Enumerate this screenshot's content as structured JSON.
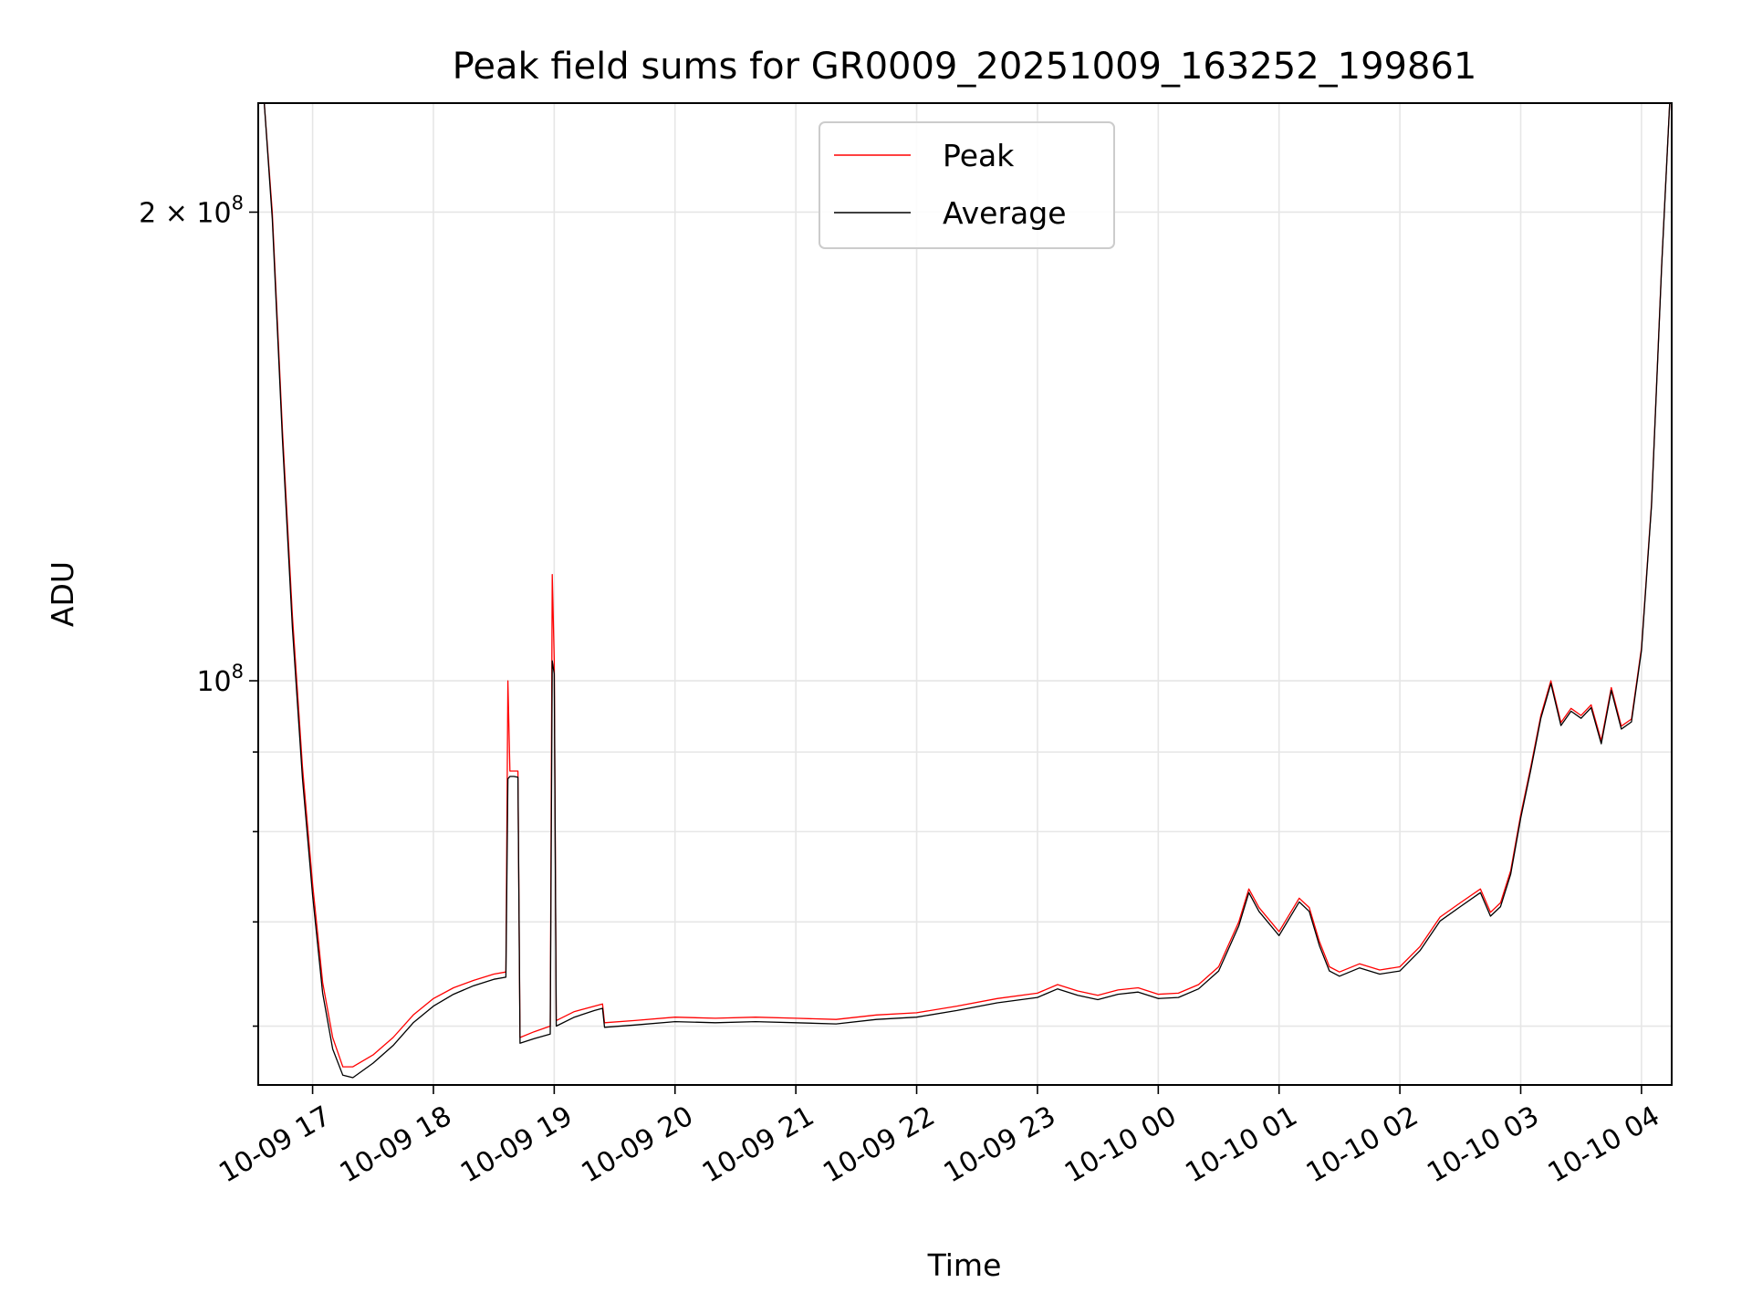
{
  "chart_data": {
    "type": "line",
    "title": "Peak field sums for GR0009_20251009_163252_199861",
    "xlabel": "Time",
    "ylabel": "ADU",
    "yscale": "log",
    "xlim": [
      "2025-10-09 16:33",
      "2025-10-10 04:15"
    ],
    "ylim": [
      55000000,
      235000000
    ],
    "grid": true,
    "legend_position": "top-center",
    "x_ticks": [
      "10-09 17",
      "10-09 18",
      "10-09 19",
      "10-09 20",
      "10-09 21",
      "10-09 22",
      "10-09 23",
      "10-10 00",
      "10-10 01",
      "10-10 02",
      "10-10 03",
      "10-10 04"
    ],
    "y_ticks": [
      {
        "value": 200000000,
        "label_base": "2 × 10",
        "label_exp": "8"
      },
      {
        "value": 100000000,
        "label_base": "10",
        "label_exp": "8"
      }
    ],
    "y_minor_ticks": [
      60000000,
      70000000,
      80000000,
      90000000
    ],
    "series": [
      {
        "name": "Peak",
        "color": "#ff0000",
        "points": [
          [
            "2025-10-09 16:36",
            235000000
          ],
          [
            "2025-10-09 16:40",
            200000000
          ],
          [
            "2025-10-09 16:45",
            145000000
          ],
          [
            "2025-10-09 16:50",
            110000000
          ],
          [
            "2025-10-09 16:55",
            88000000
          ],
          [
            "2025-10-09 17:00",
            74000000
          ],
          [
            "2025-10-09 17:05",
            64000000
          ],
          [
            "2025-10-09 17:10",
            59000000
          ],
          [
            "2025-10-09 17:15",
            56500000
          ],
          [
            "2025-10-09 17:20",
            56500000
          ],
          [
            "2025-10-09 17:30",
            57500000
          ],
          [
            "2025-10-09 17:40",
            59000000
          ],
          [
            "2025-10-09 17:50",
            61000000
          ],
          [
            "2025-10-09 18:00",
            62500000
          ],
          [
            "2025-10-09 18:10",
            63500000
          ],
          [
            "2025-10-09 18:20",
            64200000
          ],
          [
            "2025-10-09 18:30",
            64800000
          ],
          [
            "2025-10-09 18:36",
            65000000
          ],
          [
            "2025-10-09 18:37",
            100000000
          ],
          [
            "2025-10-09 18:38",
            87500000
          ],
          [
            "2025-10-09 18:40",
            87500000
          ],
          [
            "2025-10-09 18:42",
            87500000
          ],
          [
            "2025-10-09 18:43",
            59000000
          ],
          [
            "2025-10-09 18:50",
            59500000
          ],
          [
            "2025-10-09 18:58",
            60000000
          ],
          [
            "2025-10-09 18:59",
            117000000
          ],
          [
            "2025-10-09 19:00",
            103000000
          ],
          [
            "2025-10-09 19:01",
            60500000
          ],
          [
            "2025-10-09 19:10",
            61300000
          ],
          [
            "2025-10-09 19:20",
            61800000
          ],
          [
            "2025-10-09 19:24",
            62000000
          ],
          [
            "2025-10-09 19:25",
            60300000
          ],
          [
            "2025-10-09 19:40",
            60500000
          ],
          [
            "2025-10-09 20:00",
            60800000
          ],
          [
            "2025-10-09 20:20",
            60700000
          ],
          [
            "2025-10-09 20:40",
            60800000
          ],
          [
            "2025-10-09 21:00",
            60700000
          ],
          [
            "2025-10-09 21:20",
            60600000
          ],
          [
            "2025-10-09 21:40",
            61000000
          ],
          [
            "2025-10-09 22:00",
            61200000
          ],
          [
            "2025-10-09 22:20",
            61800000
          ],
          [
            "2025-10-09 22:40",
            62500000
          ],
          [
            "2025-10-09 23:00",
            63000000
          ],
          [
            "2025-10-09 23:10",
            63800000
          ],
          [
            "2025-10-09 23:20",
            63200000
          ],
          [
            "2025-10-09 23:30",
            62800000
          ],
          [
            "2025-10-09 23:40",
            63300000
          ],
          [
            "2025-10-09 23:50",
            63500000
          ],
          [
            "2025-10-10 00:00",
            62900000
          ],
          [
            "2025-10-10 00:10",
            63000000
          ],
          [
            "2025-10-10 00:20",
            63800000
          ],
          [
            "2025-10-10 00:30",
            65500000
          ],
          [
            "2025-10-10 00:40",
            70000000
          ],
          [
            "2025-10-10 00:45",
            73500000
          ],
          [
            "2025-10-10 00:50",
            71500000
          ],
          [
            "2025-10-10 01:00",
            69000000
          ],
          [
            "2025-10-10 01:10",
            72500000
          ],
          [
            "2025-10-10 01:15",
            71500000
          ],
          [
            "2025-10-10 01:20",
            68000000
          ],
          [
            "2025-10-10 01:25",
            65500000
          ],
          [
            "2025-10-10 01:30",
            65000000
          ],
          [
            "2025-10-10 01:40",
            65800000
          ],
          [
            "2025-10-10 01:50",
            65200000
          ],
          [
            "2025-10-10 02:00",
            65500000
          ],
          [
            "2025-10-10 02:10",
            67500000
          ],
          [
            "2025-10-10 02:20",
            70500000
          ],
          [
            "2025-10-10 02:30",
            72000000
          ],
          [
            "2025-10-10 02:40",
            73500000
          ],
          [
            "2025-10-10 02:45",
            71000000
          ],
          [
            "2025-10-10 02:50",
            72000000
          ],
          [
            "2025-10-10 02:55",
            75500000
          ],
          [
            "2025-10-10 03:00",
            82000000
          ],
          [
            "2025-10-10 03:05",
            88000000
          ],
          [
            "2025-10-10 03:10",
            95000000
          ],
          [
            "2025-10-10 03:15",
            100000000
          ],
          [
            "2025-10-10 03:20",
            94000000
          ],
          [
            "2025-10-10 03:25",
            96000000
          ],
          [
            "2025-10-10 03:30",
            95000000
          ],
          [
            "2025-10-10 03:35",
            96500000
          ],
          [
            "2025-10-10 03:40",
            91500000
          ],
          [
            "2025-10-10 03:45",
            99000000
          ],
          [
            "2025-10-10 03:50",
            93500000
          ],
          [
            "2025-10-10 03:55",
            94500000
          ],
          [
            "2025-10-10 04:00",
            105000000
          ],
          [
            "2025-10-10 04:05",
            130000000
          ],
          [
            "2025-10-10 04:10",
            185000000
          ],
          [
            "2025-10-10 04:14",
            235000000
          ]
        ]
      },
      {
        "name": "Average",
        "color": "#000000",
        "points": [
          [
            "2025-10-09 16:36",
            235000000
          ],
          [
            "2025-10-09 16:40",
            198000000
          ],
          [
            "2025-10-09 16:45",
            143000000
          ],
          [
            "2025-10-09 16:50",
            108000000
          ],
          [
            "2025-10-09 16:55",
            86500000
          ],
          [
            "2025-10-09 17:00",
            72800000
          ],
          [
            "2025-10-09 17:05",
            63000000
          ],
          [
            "2025-10-09 17:10",
            58000000
          ],
          [
            "2025-10-09 17:15",
            55800000
          ],
          [
            "2025-10-09 17:20",
            55600000
          ],
          [
            "2025-10-09 17:30",
            56800000
          ],
          [
            "2025-10-09 17:40",
            58300000
          ],
          [
            "2025-10-09 17:50",
            60300000
          ],
          [
            "2025-10-09 18:00",
            61800000
          ],
          [
            "2025-10-09 18:10",
            62900000
          ],
          [
            "2025-10-09 18:20",
            63700000
          ],
          [
            "2025-10-09 18:30",
            64300000
          ],
          [
            "2025-10-09 18:36",
            64500000
          ],
          [
            "2025-10-09 18:37",
            86500000
          ],
          [
            "2025-10-09 18:38",
            86800000
          ],
          [
            "2025-10-09 18:40",
            86800000
          ],
          [
            "2025-10-09 18:42",
            86700000
          ],
          [
            "2025-10-09 18:43",
            58500000
          ],
          [
            "2025-10-09 18:50",
            58900000
          ],
          [
            "2025-10-09 18:58",
            59300000
          ],
          [
            "2025-10-09 18:59",
            103000000
          ],
          [
            "2025-10-09 19:00",
            101000000
          ],
          [
            "2025-10-09 19:01",
            60000000
          ],
          [
            "2025-10-09 19:10",
            60800000
          ],
          [
            "2025-10-09 19:20",
            61400000
          ],
          [
            "2025-10-09 19:24",
            61600000
          ],
          [
            "2025-10-09 19:25",
            59900000
          ],
          [
            "2025-10-09 19:40",
            60100000
          ],
          [
            "2025-10-09 20:00",
            60400000
          ],
          [
            "2025-10-09 20:20",
            60300000
          ],
          [
            "2025-10-09 20:40",
            60400000
          ],
          [
            "2025-10-09 21:00",
            60300000
          ],
          [
            "2025-10-09 21:20",
            60200000
          ],
          [
            "2025-10-09 21:40",
            60600000
          ],
          [
            "2025-10-09 22:00",
            60800000
          ],
          [
            "2025-10-09 22:20",
            61400000
          ],
          [
            "2025-10-09 22:40",
            62100000
          ],
          [
            "2025-10-09 23:00",
            62600000
          ],
          [
            "2025-10-09 23:10",
            63400000
          ],
          [
            "2025-10-09 23:20",
            62800000
          ],
          [
            "2025-10-09 23:30",
            62400000
          ],
          [
            "2025-10-09 23:40",
            62900000
          ],
          [
            "2025-10-09 23:50",
            63100000
          ],
          [
            "2025-10-10 00:00",
            62500000
          ],
          [
            "2025-10-10 00:10",
            62600000
          ],
          [
            "2025-10-10 00:20",
            63400000
          ],
          [
            "2025-10-10 00:30",
            65100000
          ],
          [
            "2025-10-10 00:40",
            69600000
          ],
          [
            "2025-10-10 00:45",
            73100000
          ],
          [
            "2025-10-10 00:50",
            71100000
          ],
          [
            "2025-10-10 01:00",
            68600000
          ],
          [
            "2025-10-10 01:10",
            72100000
          ],
          [
            "2025-10-10 01:15",
            71100000
          ],
          [
            "2025-10-10 01:20",
            67600000
          ],
          [
            "2025-10-10 01:25",
            65100000
          ],
          [
            "2025-10-10 01:30",
            64600000
          ],
          [
            "2025-10-10 01:40",
            65400000
          ],
          [
            "2025-10-10 01:50",
            64800000
          ],
          [
            "2025-10-10 02:00",
            65100000
          ],
          [
            "2025-10-10 02:10",
            67100000
          ],
          [
            "2025-10-10 02:20",
            70100000
          ],
          [
            "2025-10-10 02:30",
            71600000
          ],
          [
            "2025-10-10 02:40",
            73100000
          ],
          [
            "2025-10-10 02:45",
            70600000
          ],
          [
            "2025-10-10 02:50",
            71600000
          ],
          [
            "2025-10-10 02:55",
            75100000
          ],
          [
            "2025-10-10 03:00",
            81600000
          ],
          [
            "2025-10-10 03:05",
            87600000
          ],
          [
            "2025-10-10 03:10",
            94600000
          ],
          [
            "2025-10-10 03:15",
            99600000
          ],
          [
            "2025-10-10 03:20",
            93600000
          ],
          [
            "2025-10-10 03:25",
            95600000
          ],
          [
            "2025-10-10 03:30",
            94600000
          ],
          [
            "2025-10-10 03:35",
            96100000
          ],
          [
            "2025-10-10 03:40",
            91100000
          ],
          [
            "2025-10-10 03:45",
            98600000
          ],
          [
            "2025-10-10 03:50",
            93100000
          ],
          [
            "2025-10-10 03:55",
            94100000
          ],
          [
            "2025-10-10 04:00",
            104600000
          ],
          [
            "2025-10-10 04:05",
            129600000
          ],
          [
            "2025-10-10 04:10",
            184600000
          ],
          [
            "2025-10-10 04:14",
            235000000
          ]
        ]
      }
    ]
  }
}
